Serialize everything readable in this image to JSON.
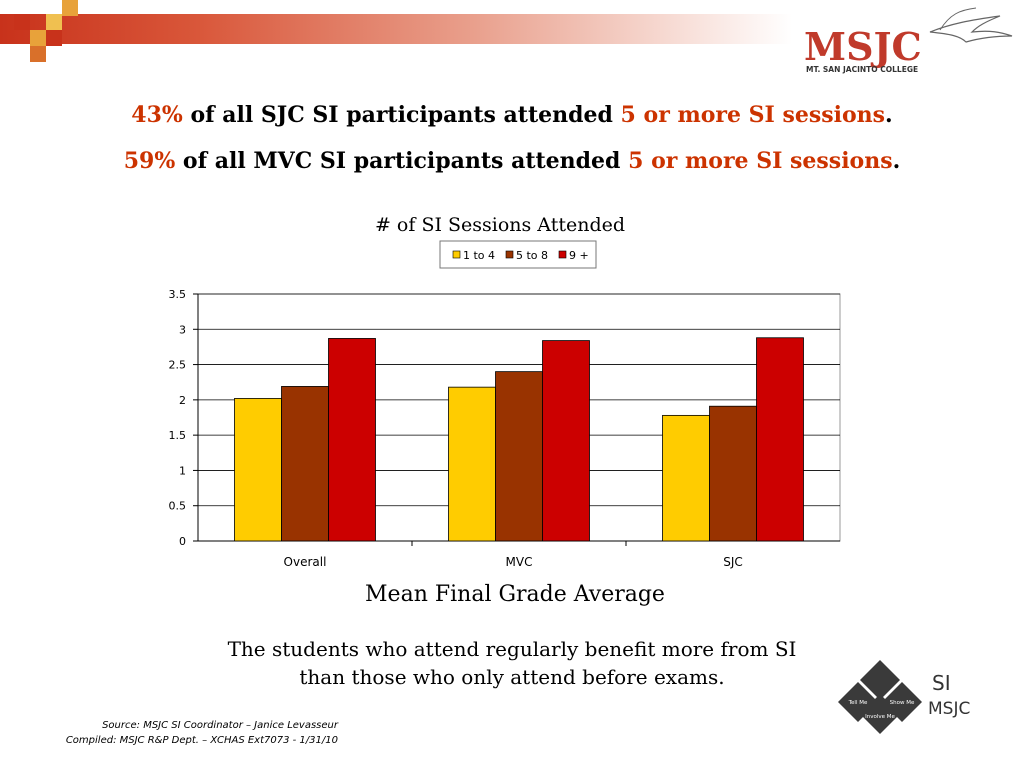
{
  "header": {
    "line1": {
      "pct": "43%",
      "mid": "of all SJC SI participants attended",
      "hl": "5 or more SI sessions",
      "end": "."
    },
    "line2": {
      "pct": "59%",
      "mid": "of all MVC SI participants attended",
      "hl": "5 or more SI sessions",
      "end": "."
    }
  },
  "logo": {
    "name": "MSJC",
    "subtitle": "MT. SAN JACINTO COLLEGE"
  },
  "chart_data": {
    "type": "bar",
    "title": "# of SI Sessions Attended",
    "xlabel": "Mean Final Grade Average",
    "ylabel": "",
    "categories": [
      "Overall",
      "MVC",
      "SJC"
    ],
    "series": [
      {
        "name": "1 to 4",
        "color": "#ffcc00",
        "values": [
          2.02,
          2.18,
          1.78
        ]
      },
      {
        "name": "5 to 8",
        "color": "#993300",
        "values": [
          2.19,
          2.4,
          1.91
        ]
      },
      {
        "name": "9 +",
        "color": "#cc0000",
        "values": [
          2.87,
          2.84,
          2.88
        ]
      }
    ],
    "ylim": [
      0,
      3.5
    ],
    "yticks": [
      "0",
      "0.5",
      "1",
      "1.5",
      "2",
      "2.5",
      "3",
      "3.5"
    ],
    "grid": true,
    "legend": "top"
  },
  "summary": {
    "line1": "The students who attend regularly benefit more from SI",
    "line2": "than those who only attend before exams."
  },
  "source": {
    "line1": "Source: MSJC SI Coordinator – Janice Levasseur",
    "line2": "Compiled: MSJC R&P Dept. – XCHAS  Ext7073 -  1/31/10"
  },
  "si_logo": {
    "tell": "Tell Me",
    "show": "Show Me",
    "involve": "Involve Me",
    "si": "SI",
    "msjc": "MSJC"
  }
}
